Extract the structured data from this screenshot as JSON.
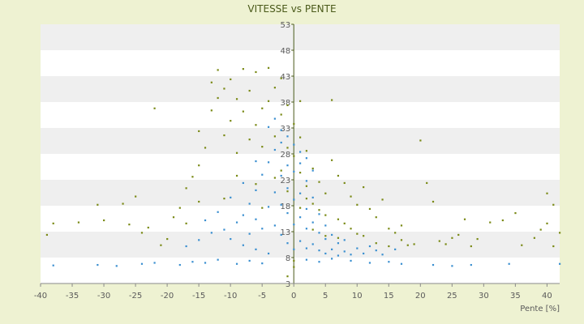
{
  "chart_data": {
    "type": "scatter",
    "title": "VITESSE vs PENTE",
    "xlabel": "Pente [%]",
    "ylabel": "",
    "xlim": [
      -40,
      42
    ],
    "ylim": [
      3,
      53
    ],
    "x_ticks": [
      "-40",
      "-35",
      "-30",
      "-25",
      "-20",
      "-15",
      "-10",
      "-5",
      "0",
      "5",
      "10",
      "15",
      "20",
      "25",
      "30",
      "35",
      "40"
    ],
    "y_ticks": [
      "3",
      "8",
      "13",
      "18",
      "23",
      "28",
      "33",
      "38",
      "43",
      "48",
      "53"
    ],
    "y_axis_position": "at x = 0",
    "grid": "alternating horizontal bands",
    "legend": "none",
    "colors": {
      "background": "#eef2d2",
      "plot_band_light": "#ffffff",
      "plot_band_dark": "#efefef",
      "series_1": "#3a8fd0",
      "series_2": "#7a8a16",
      "axis": "#4a5a1a"
    },
    "series": [
      {
        "color": "#3a8fd0",
        "points": [
          [
            -38,
            6.5
          ],
          [
            -31,
            6.6
          ],
          [
            -28,
            6.4
          ],
          [
            -24,
            6.8
          ],
          [
            -22,
            7.0
          ],
          [
            -18,
            6.6
          ],
          [
            -16,
            7.2
          ],
          [
            -14,
            7.0
          ],
          [
            -12,
            7.6
          ],
          [
            -9,
            6.8
          ],
          [
            -7,
            7.4
          ],
          [
            -5,
            6.9
          ],
          [
            -17,
            10.2
          ],
          [
            -15,
            11.4
          ],
          [
            -13,
            12.8
          ],
          [
            -11,
            13.4
          ],
          [
            -10,
            11.6
          ],
          [
            -9,
            14.8
          ],
          [
            -8,
            10.4
          ],
          [
            -8,
            16.2
          ],
          [
            -7,
            12.6
          ],
          [
            -7,
            18.4
          ],
          [
            -6,
            15.4
          ],
          [
            -6,
            21.0
          ],
          [
            -5,
            13.6
          ],
          [
            -5,
            24.0
          ],
          [
            -4,
            17.8
          ],
          [
            -4,
            26.4
          ],
          [
            -3,
            14.2
          ],
          [
            -3,
            20.6
          ],
          [
            -3,
            28.8
          ],
          [
            -2,
            12.4
          ],
          [
            -2,
            18.2
          ],
          [
            -2,
            23.8
          ],
          [
            -2,
            30.2
          ],
          [
            -1,
            10.8
          ],
          [
            -1,
            16.6
          ],
          [
            -1,
            21.4
          ],
          [
            -1,
            25.8
          ],
          [
            0,
            9.6
          ],
          [
            0,
            14.4
          ],
          [
            0,
            19.2
          ],
          [
            0,
            24.6
          ],
          [
            1,
            11.2
          ],
          [
            1,
            15.8
          ],
          [
            1,
            20.4
          ],
          [
            1,
            26.2
          ],
          [
            2,
            9.8
          ],
          [
            2,
            13.6
          ],
          [
            2,
            17.4
          ],
          [
            2,
            22.8
          ],
          [
            3,
            10.6
          ],
          [
            3,
            14.8
          ],
          [
            3,
            19.6
          ],
          [
            4,
            9.4
          ],
          [
            4,
            12.8
          ],
          [
            4,
            16.4
          ],
          [
            5,
            8.8
          ],
          [
            5,
            11.6
          ],
          [
            5,
            14.2
          ],
          [
            6,
            9.6
          ],
          [
            6,
            12.4
          ],
          [
            7,
            8.4
          ],
          [
            7,
            10.8
          ],
          [
            8,
            9.2
          ],
          [
            8,
            11.4
          ],
          [
            9,
            8.6
          ],
          [
            10,
            9.8
          ],
          [
            11,
            8.8
          ],
          [
            12,
            10.2
          ],
          [
            13,
            9.4
          ],
          [
            14,
            8.6
          ],
          [
            16,
            9.6
          ],
          [
            17,
            6.8
          ],
          [
            22,
            6.6
          ],
          [
            25,
            6.4
          ],
          [
            28,
            6.6
          ],
          [
            34,
            6.8
          ],
          [
            42,
            6.8
          ],
          [
            -2,
            32.6
          ],
          [
            -3,
            34.8
          ],
          [
            -1,
            31.4
          ],
          [
            0,
            29.8
          ],
          [
            1,
            28.4
          ],
          [
            -4,
            33.2
          ],
          [
            2,
            27.2
          ],
          [
            3,
            24.8
          ],
          [
            -6,
            26.6
          ],
          [
            -8,
            22.4
          ],
          [
            -10,
            19.6
          ],
          [
            -12,
            16.8
          ],
          [
            -14,
            15.2
          ],
          [
            -6,
            9.6
          ],
          [
            -4,
            8.8
          ],
          [
            2,
            7.6
          ],
          [
            4,
            7.2
          ],
          [
            6,
            7.8
          ],
          [
            9,
            7.4
          ],
          [
            12,
            7.0
          ],
          [
            15,
            7.2
          ]
        ]
      },
      {
        "color": "#7a8a16",
        "points": [
          [
            -39,
            12.4
          ],
          [
            -38,
            14.6
          ],
          [
            -34,
            14.8
          ],
          [
            -30,
            15.2
          ],
          [
            -27,
            18.4
          ],
          [
            -25,
            19.8
          ],
          [
            -24,
            12.8
          ],
          [
            -23,
            13.8
          ],
          [
            -21,
            10.4
          ],
          [
            -20,
            11.6
          ],
          [
            -19,
            15.8
          ],
          [
            -18,
            17.6
          ],
          [
            -17,
            21.4
          ],
          [
            -16,
            23.6
          ],
          [
            -15,
            25.8
          ],
          [
            -15,
            32.4
          ],
          [
            -14,
            29.2
          ],
          [
            -13,
            36.4
          ],
          [
            -13,
            41.8
          ],
          [
            -12,
            38.8
          ],
          [
            -12,
            44.2
          ],
          [
            -11,
            40.6
          ],
          [
            -11,
            31.6
          ],
          [
            -10,
            42.4
          ],
          [
            -10,
            34.4
          ],
          [
            -9,
            28.2
          ],
          [
            -9,
            38.6
          ],
          [
            -8,
            36.2
          ],
          [
            -8,
            44.4
          ],
          [
            -7,
            30.8
          ],
          [
            -7,
            40.2
          ],
          [
            -6,
            33.6
          ],
          [
            -6,
            43.8
          ],
          [
            -5,
            36.8
          ],
          [
            -5,
            29.4
          ],
          [
            -4,
            38.2
          ],
          [
            -4,
            44.6
          ],
          [
            -3,
            31.4
          ],
          [
            -3,
            40.8
          ],
          [
            -2,
            35.6
          ],
          [
            -2,
            42.6
          ],
          [
            -1,
            37.4
          ],
          [
            -1,
            29.2
          ],
          [
            0,
            33.8
          ],
          [
            0,
            27.6
          ],
          [
            1,
            31.2
          ],
          [
            1,
            24.4
          ],
          [
            2,
            28.6
          ],
          [
            2,
            21.8
          ],
          [
            3,
            25.2
          ],
          [
            3,
            18.4
          ],
          [
            4,
            22.6
          ],
          [
            4,
            17.2
          ],
          [
            5,
            20.4
          ],
          [
            5,
            16.2
          ],
          [
            6,
            26.8
          ],
          [
            6,
            38.4
          ],
          [
            7,
            23.8
          ],
          [
            7,
            15.4
          ],
          [
            8,
            22.4
          ],
          [
            8,
            14.6
          ],
          [
            9,
            19.8
          ],
          [
            10,
            18.2
          ],
          [
            10,
            12.6
          ],
          [
            11,
            21.6
          ],
          [
            12,
            17.4
          ],
          [
            13,
            15.8
          ],
          [
            14,
            19.2
          ],
          [
            15,
            13.6
          ],
          [
            16,
            12.8
          ],
          [
            17,
            14.2
          ],
          [
            18,
            10.4
          ],
          [
            19,
            10.6
          ],
          [
            20,
            30.6
          ],
          [
            21,
            22.4
          ],
          [
            22,
            18.8
          ],
          [
            23,
            11.2
          ],
          [
            24,
            10.6
          ],
          [
            25,
            11.8
          ],
          [
            26,
            12.4
          ],
          [
            27,
            15.4
          ],
          [
            28,
            10.2
          ],
          [
            29,
            11.6
          ],
          [
            31,
            14.8
          ],
          [
            33,
            15.2
          ],
          [
            35,
            16.6
          ],
          [
            36,
            10.4
          ],
          [
            38,
            11.8
          ],
          [
            39,
            13.4
          ],
          [
            40,
            14.6
          ],
          [
            40,
            20.4
          ],
          [
            41,
            18.2
          ],
          [
            41,
            10.2
          ],
          [
            42,
            12.8
          ],
          [
            -22,
            36.8
          ],
          [
            -26,
            14.4
          ],
          [
            -31,
            18.2
          ],
          [
            -17,
            14.6
          ],
          [
            -15,
            18.8
          ],
          [
            -11,
            19.4
          ],
          [
            -9,
            23.8
          ],
          [
            -6,
            22.2
          ],
          [
            -3,
            23.4
          ],
          [
            -1,
            20.8
          ],
          [
            1,
            17.6
          ],
          [
            3,
            13.4
          ],
          [
            5,
            12.2
          ],
          [
            7,
            11.8
          ],
          [
            9,
            13.6
          ],
          [
            11,
            12.2
          ],
          [
            13,
            10.8
          ],
          [
            15,
            10.2
          ],
          [
            17,
            11.4
          ],
          [
            0,
            6.2
          ],
          [
            0,
            7.4
          ],
          [
            -1,
            4.4
          ],
          [
            1,
            38.2
          ],
          [
            -2,
            24.8
          ],
          [
            2,
            19.4
          ],
          [
            -5,
            17.6
          ]
        ]
      }
    ]
  }
}
